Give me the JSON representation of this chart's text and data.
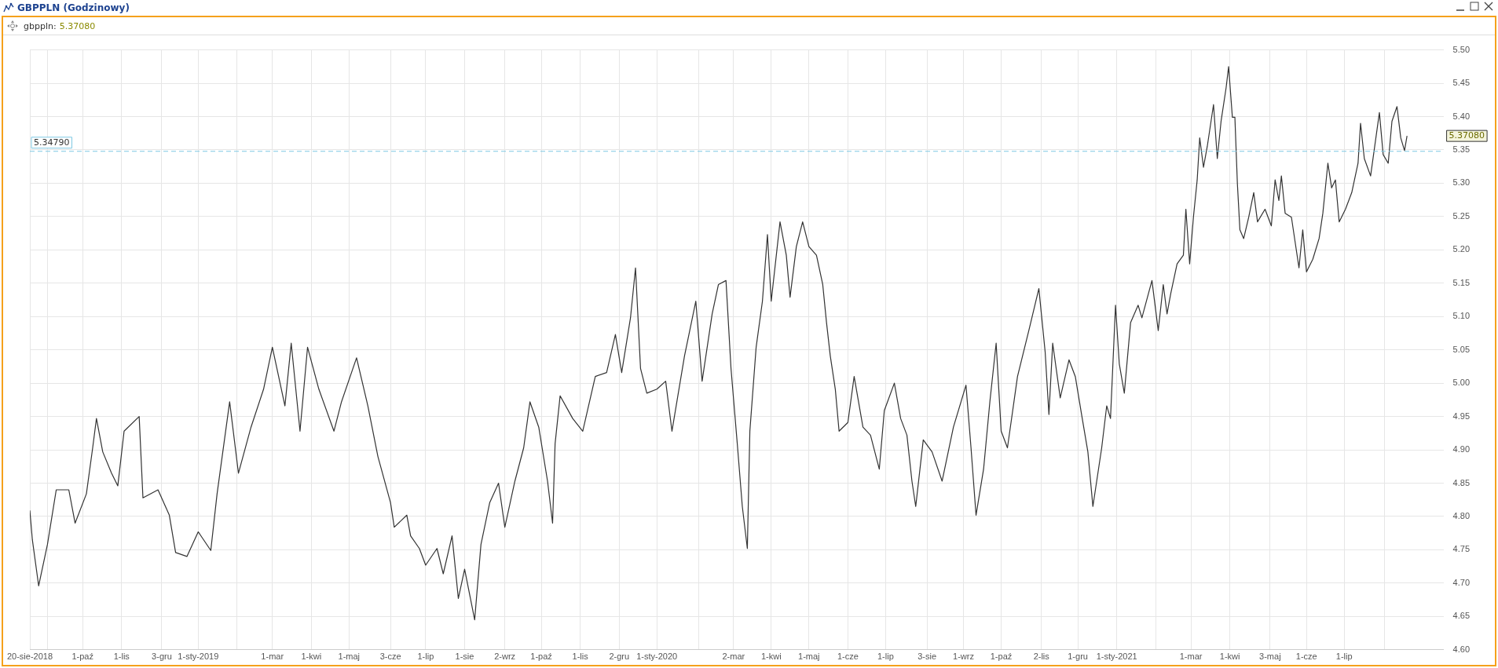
{
  "chart_data": {
    "type": "line",
    "title": "GBPPLN (Godzinowy)",
    "x": [
      "2018-08-20",
      "2018-08-22",
      "2018-08-27",
      "2018-09-03",
      "2018-09-10",
      "2018-09-20",
      "2018-09-25",
      "2018-10-04",
      "2018-10-09",
      "2018-10-12",
      "2018-10-17",
      "2018-10-24",
      "2018-10-29",
      "2018-11-03",
      "2018-11-15",
      "2018-11-18",
      "2018-11-30",
      "2018-12-09",
      "2018-12-14",
      "2018-12-23",
      "2019-01-01",
      "2019-01-11",
      "2019-01-16",
      "2019-01-26",
      "2019-02-02",
      "2019-02-12",
      "2019-02-22",
      "2019-03-01",
      "2019-03-11",
      "2019-03-16",
      "2019-03-23",
      "2019-03-29",
      "2019-04-07",
      "2019-04-19",
      "2019-04-25",
      "2019-05-07",
      "2019-05-16",
      "2019-05-24",
      "2019-06-03",
      "2019-06-06",
      "2019-06-16",
      "2019-06-19",
      "2019-06-26",
      "2019-07-01",
      "2019-07-10",
      "2019-07-15",
      "2019-07-22",
      "2019-07-27",
      "2019-08-01",
      "2019-08-09",
      "2019-08-14",
      "2019-08-21",
      "2019-08-28",
      "2019-09-02",
      "2019-09-10",
      "2019-09-17",
      "2019-09-22",
      "2019-09-29",
      "2019-10-06",
      "2019-10-10",
      "2019-10-12",
      "2019-10-16",
      "2019-10-26",
      "2019-11-03",
      "2019-11-13",
      "2019-11-22",
      "2019-11-29",
      "2019-12-04",
      "2019-12-11",
      "2019-12-15",
      "2019-12-19",
      "2019-12-24",
      "2020-01-01",
      "2020-01-08",
      "2020-01-13",
      "2020-01-23",
      "2020-02-01",
      "2020-02-06",
      "2020-02-14",
      "2020-02-19",
      "2020-02-25",
      "2020-02-29",
      "2020-03-05",
      "2020-03-09",
      "2020-03-13",
      "2020-03-15",
      "2020-03-20",
      "2020-03-25",
      "2020-03-29",
      "2020-04-01",
      "2020-04-08",
      "2020-04-13",
      "2020-04-16",
      "2020-04-21",
      "2020-04-26",
      "2020-05-01",
      "2020-05-07",
      "2020-05-12",
      "2020-05-15",
      "2020-05-18",
      "2020-05-22",
      "2020-05-25",
      "2020-06-01",
      "2020-06-06",
      "2020-06-13",
      "2020-06-19",
      "2020-06-26",
      "2020-06-30",
      "2020-07-08",
      "2020-07-13",
      "2020-07-18",
      "2020-07-22",
      "2020-07-25",
      "2020-07-31",
      "2020-08-07",
      "2020-08-15",
      "2020-08-24",
      "2020-09-03",
      "2020-09-07",
      "2020-09-11",
      "2020-09-17",
      "2020-09-22",
      "2020-09-27",
      "2020-10-01",
      "2020-10-06",
      "2020-10-14",
      "2020-10-23",
      "2020-10-31",
      "2020-11-05",
      "2020-11-08",
      "2020-11-11",
      "2020-11-17",
      "2020-11-24",
      "2020-11-29",
      "2020-12-04",
      "2020-12-09",
      "2020-12-13",
      "2020-12-20",
      "2020-12-24",
      "2020-12-27",
      "2020-12-31",
      "2021-01-03",
      "2021-01-07",
      "2021-01-12",
      "2021-01-18",
      "2021-01-21",
      "2021-01-29",
      "2021-02-03",
      "2021-02-07",
      "2021-02-10",
      "2021-02-13",
      "2021-02-18",
      "2021-02-23",
      "2021-02-25",
      "2021-02-28",
      "2021-03-03",
      "2021-03-06",
      "2021-03-08",
      "2021-03-11",
      "2021-03-14",
      "2021-03-19",
      "2021-03-22",
      "2021-03-25",
      "2021-03-29",
      "2021-03-31",
      "2021-04-03",
      "2021-04-05",
      "2021-04-07",
      "2021-04-09",
      "2021-04-12",
      "2021-04-16",
      "2021-04-20",
      "2021-04-23",
      "2021-04-29",
      "2021-05-04",
      "2021-05-07",
      "2021-05-10",
      "2021-05-12",
      "2021-05-15",
      "2021-05-20",
      "2021-05-23",
      "2021-05-26",
      "2021-05-29",
      "2021-06-01",
      "2021-06-06",
      "2021-06-11",
      "2021-06-14",
      "2021-06-18",
      "2021-06-21",
      "2021-06-24",
      "2021-06-27",
      "2021-07-02",
      "2021-07-07",
      "2021-07-12",
      "2021-07-14",
      "2021-07-17",
      "2021-07-22",
      "2021-07-29",
      "2021-08-01",
      "2021-08-05",
      "2021-08-08",
      "2021-08-12",
      "2021-08-15",
      "2021-08-18",
      "2021-08-20"
    ],
    "series": [
      {
        "name": "gbppln:",
        "color": "#333333",
        "values": [
          4.809,
          4.765,
          4.696,
          4.758,
          4.84,
          4.84,
          4.79,
          4.834,
          4.903,
          4.947,
          4.897,
          4.865,
          4.846,
          4.928,
          4.95,
          4.828,
          4.84,
          4.802,
          4.746,
          4.74,
          4.777,
          4.749,
          4.834,
          4.972,
          4.865,
          4.934,
          4.991,
          5.054,
          4.966,
          5.06,
          4.928,
          5.054,
          4.991,
          4.928,
          4.972,
          5.038,
          4.966,
          4.89,
          4.821,
          4.784,
          4.802,
          4.771,
          4.752,
          4.727,
          4.752,
          4.714,
          4.771,
          4.677,
          4.721,
          4.645,
          4.758,
          4.821,
          4.85,
          4.784,
          4.853,
          4.903,
          4.972,
          4.934,
          4.853,
          4.79,
          4.909,
          4.981,
          4.947,
          4.928,
          5.01,
          5.016,
          5.073,
          5.016,
          5.098,
          5.173,
          5.022,
          4.985,
          4.991,
          5.003,
          4.928,
          5.041,
          5.123,
          5.003,
          5.104,
          5.148,
          5.154,
          5.022,
          4.909,
          4.815,
          4.752,
          4.928,
          5.054,
          5.123,
          5.223,
          5.123,
          5.242,
          5.192,
          5.129,
          5.205,
          5.242,
          5.205,
          5.192,
          5.148,
          5.091,
          5.041,
          4.991,
          4.928,
          4.941,
          5.01,
          4.934,
          4.922,
          4.871,
          4.959,
          5.0,
          4.947,
          4.922,
          4.853,
          4.815,
          4.915,
          4.897,
          4.853,
          4.934,
          4.997,
          4.903,
          4.802,
          4.871,
          4.972,
          5.06,
          4.928,
          4.903,
          5.01,
          5.079,
          5.142,
          5.047,
          4.953,
          5.06,
          4.978,
          5.035,
          5.01,
          4.953,
          4.897,
          4.815,
          4.903,
          4.966,
          4.947,
          5.117,
          5.029,
          4.985,
          5.091,
          5.117,
          5.098,
          5.154,
          5.079,
          5.148,
          5.104,
          5.135,
          5.179,
          5.192,
          5.261,
          5.179,
          5.249,
          5.305,
          5.368,
          5.324,
          5.355,
          5.418,
          5.337,
          5.393,
          5.443,
          5.475,
          5.399,
          5.399,
          5.299,
          5.23,
          5.217,
          5.249,
          5.286,
          5.242,
          5.261,
          5.236,
          5.305,
          5.274,
          5.311,
          5.255,
          5.249,
          5.211,
          5.173,
          5.23,
          5.167,
          5.186,
          5.217,
          5.255,
          5.33,
          5.293,
          5.305,
          5.242,
          5.261,
          5.286,
          5.33,
          5.39,
          5.337,
          5.311,
          5.406,
          5.343,
          5.33,
          5.393,
          5.415,
          5.368,
          5.349,
          5.371
        ]
      }
    ],
    "xlim": [
      "2018-08-20",
      "2021-09-18"
    ],
    "xticks": [
      {
        "value": "2018-08-20",
        "label": "20-sie-2018"
      },
      {
        "value": "2018-09-03",
        "label": null
      },
      {
        "value": "2018-10-01",
        "label": "1-paź"
      },
      {
        "value": "2018-11-01",
        "label": "1-lis"
      },
      {
        "value": "2018-12-03",
        "label": "3-gru"
      },
      {
        "value": "2019-01-01",
        "label": "1-sty-2019"
      },
      {
        "value": "2019-02-01",
        "label": null
      },
      {
        "value": "2019-03-01",
        "label": "1-mar"
      },
      {
        "value": "2019-04-01",
        "label": "1-kwi"
      },
      {
        "value": "2019-05-01",
        "label": "1-maj"
      },
      {
        "value": "2019-06-03",
        "label": "3-cze"
      },
      {
        "value": "2019-07-01",
        "label": "1-lip"
      },
      {
        "value": "2019-08-01",
        "label": "1-sie"
      },
      {
        "value": "2019-09-02",
        "label": "2-wrz"
      },
      {
        "value": "2019-10-01",
        "label": "1-paź"
      },
      {
        "value": "2019-11-01",
        "label": "1-lis"
      },
      {
        "value": "2019-12-02",
        "label": "2-gru"
      },
      {
        "value": "2020-01-01",
        "label": "1-sty-2020"
      },
      {
        "value": "2020-02-03",
        "label": null
      },
      {
        "value": "2020-03-02",
        "label": "2-mar"
      },
      {
        "value": "2020-04-01",
        "label": "1-kwi"
      },
      {
        "value": "2020-05-01",
        "label": "1-maj"
      },
      {
        "value": "2020-06-01",
        "label": "1-cze"
      },
      {
        "value": "2020-07-01",
        "label": "1-lip"
      },
      {
        "value": "2020-08-03",
        "label": "3-sie"
      },
      {
        "value": "2020-09-01",
        "label": "1-wrz"
      },
      {
        "value": "2020-10-01",
        "label": "1-paź"
      },
      {
        "value": "2020-11-02",
        "label": "2-lis"
      },
      {
        "value": "2020-12-01",
        "label": "1-gru"
      },
      {
        "value": "2021-01-01",
        "label": "1-sty-2021"
      },
      {
        "value": "2021-02-01",
        "label": null
      },
      {
        "value": "2021-03-01",
        "label": "1-mar"
      },
      {
        "value": "2021-04-01",
        "label": "1-kwi"
      },
      {
        "value": "2021-05-03",
        "label": "3-maj"
      },
      {
        "value": "2021-06-01",
        "label": "1-cze"
      },
      {
        "value": "2021-07-01",
        "label": "1-lip"
      },
      {
        "value": "2021-08-02",
        "label": null
      }
    ],
    "ylim": [
      4.6,
      5.5
    ],
    "yticks": [
      {
        "value": 4.6,
        "label": "4.60"
      },
      {
        "value": 4.65,
        "label": "4.65"
      },
      {
        "value": 4.7,
        "label": "4.70"
      },
      {
        "value": 4.75,
        "label": "4.75"
      },
      {
        "value": 4.8,
        "label": "4.80"
      },
      {
        "value": 4.85,
        "label": "4.85"
      },
      {
        "value": 4.9,
        "label": "4.90"
      },
      {
        "value": 4.95,
        "label": "4.95"
      },
      {
        "value": 5.0,
        "label": "5.00"
      },
      {
        "value": 5.05,
        "label": "5.05"
      },
      {
        "value": 5.1,
        "label": "5.10"
      },
      {
        "value": 5.15,
        "label": "5.15"
      },
      {
        "value": 5.2,
        "label": "5.20"
      },
      {
        "value": 5.25,
        "label": "5.25"
      },
      {
        "value": 5.3,
        "label": "5.30"
      },
      {
        "value": 5.35,
        "label": "5.35"
      },
      {
        "value": 5.4,
        "label": "5.40"
      },
      {
        "value": 5.45,
        "label": "5.45"
      },
      {
        "value": 5.5,
        "label": "5.50"
      }
    ],
    "ref_lines": [
      {
        "axis": "y",
        "value": 5.3479,
        "label": "5.34790",
        "color": "#7ec8e3",
        "line_style": "dashed"
      }
    ],
    "annotations": [
      "5.37080",
      "5.37080"
    ],
    "grid": true,
    "legend": "top left"
  }
}
